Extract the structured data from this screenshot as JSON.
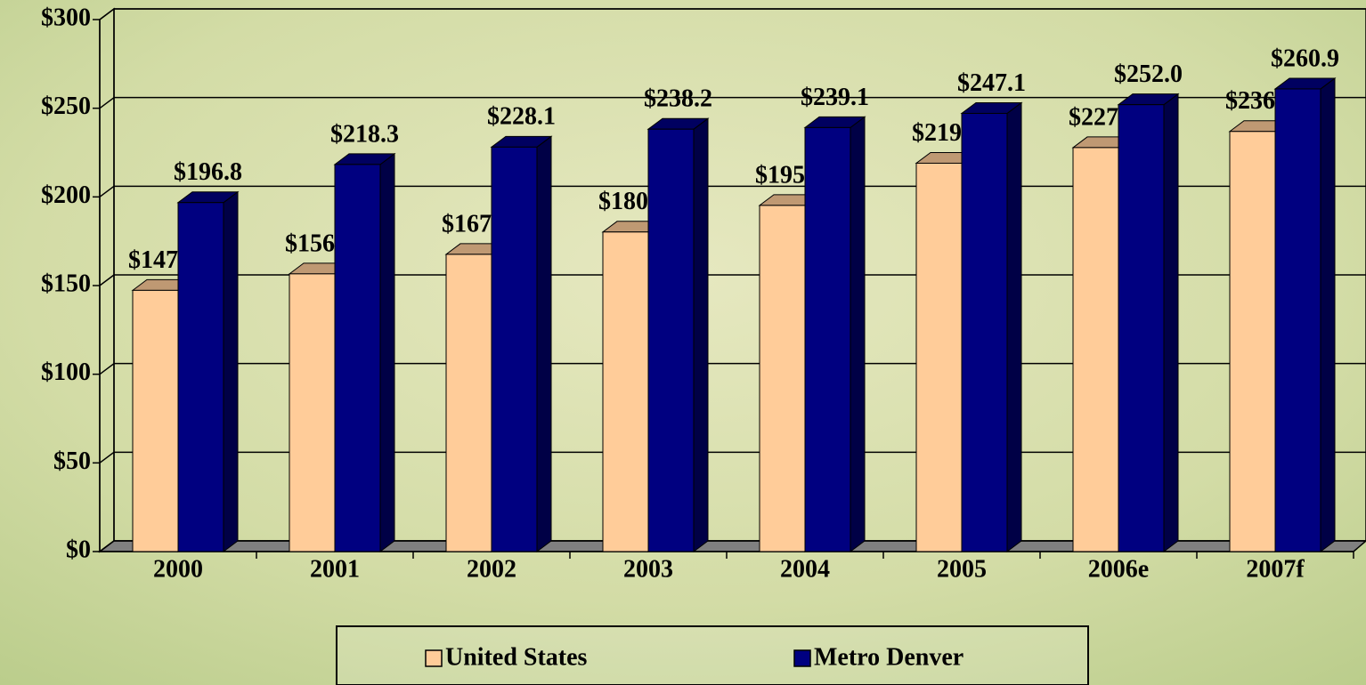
{
  "chart_data": {
    "type": "bar3d",
    "categories": [
      "2000",
      "2001",
      "2002",
      "2003",
      "2004",
      "2005",
      "2006e",
      "2007f"
    ],
    "series": [
      {
        "name": "United States",
        "color": "#ffcc99",
        "values": [
          147.3,
          156.6,
          167.6,
          180.2,
          195.2,
          219.0,
          227.8,
          236.9
        ],
        "value_labels": [
          "$147.3",
          "$156.6",
          "$167.6",
          "$180.2",
          "$195.2",
          "$219.0",
          "$227.8",
          "$236.9"
        ]
      },
      {
        "name": "Metro Denver",
        "color": "#000080",
        "values": [
          196.8,
          218.3,
          228.1,
          238.2,
          239.1,
          247.1,
          252.0,
          260.9
        ],
        "value_labels": [
          "$196.8",
          "$218.3",
          "$228.1",
          "$238.2",
          "$239.1",
          "$247.1",
          "$252.0",
          "$260.9"
        ]
      }
    ],
    "ylim": [
      0,
      300
    ],
    "yticks": [
      {
        "value": 0,
        "label": "$0"
      },
      {
        "value": 50,
        "label": "$50"
      },
      {
        "value": 100,
        "label": "$100"
      },
      {
        "value": 150,
        "label": "$150"
      },
      {
        "value": 200,
        "label": "$200"
      },
      {
        "value": 250,
        "label": "$250"
      },
      {
        "value": 300,
        "label": "$300"
      }
    ],
    "grid": true
  }
}
